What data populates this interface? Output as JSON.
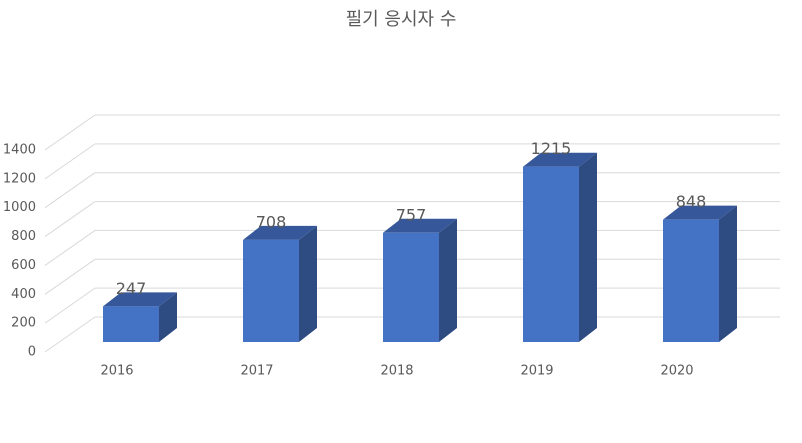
{
  "chart_data": {
    "type": "bar3d",
    "title": "필기 응시자 수",
    "categories": [
      "2016",
      "2017",
      "2018",
      "2019",
      "2020"
    ],
    "values": [
      247,
      708,
      757,
      1215,
      848
    ],
    "color": "#4472c4",
    "ylim": [
      0,
      1400
    ],
    "yticks": [
      0,
      200,
      400,
      600,
      800,
      1000,
      1200,
      1400
    ],
    "grid": true
  }
}
